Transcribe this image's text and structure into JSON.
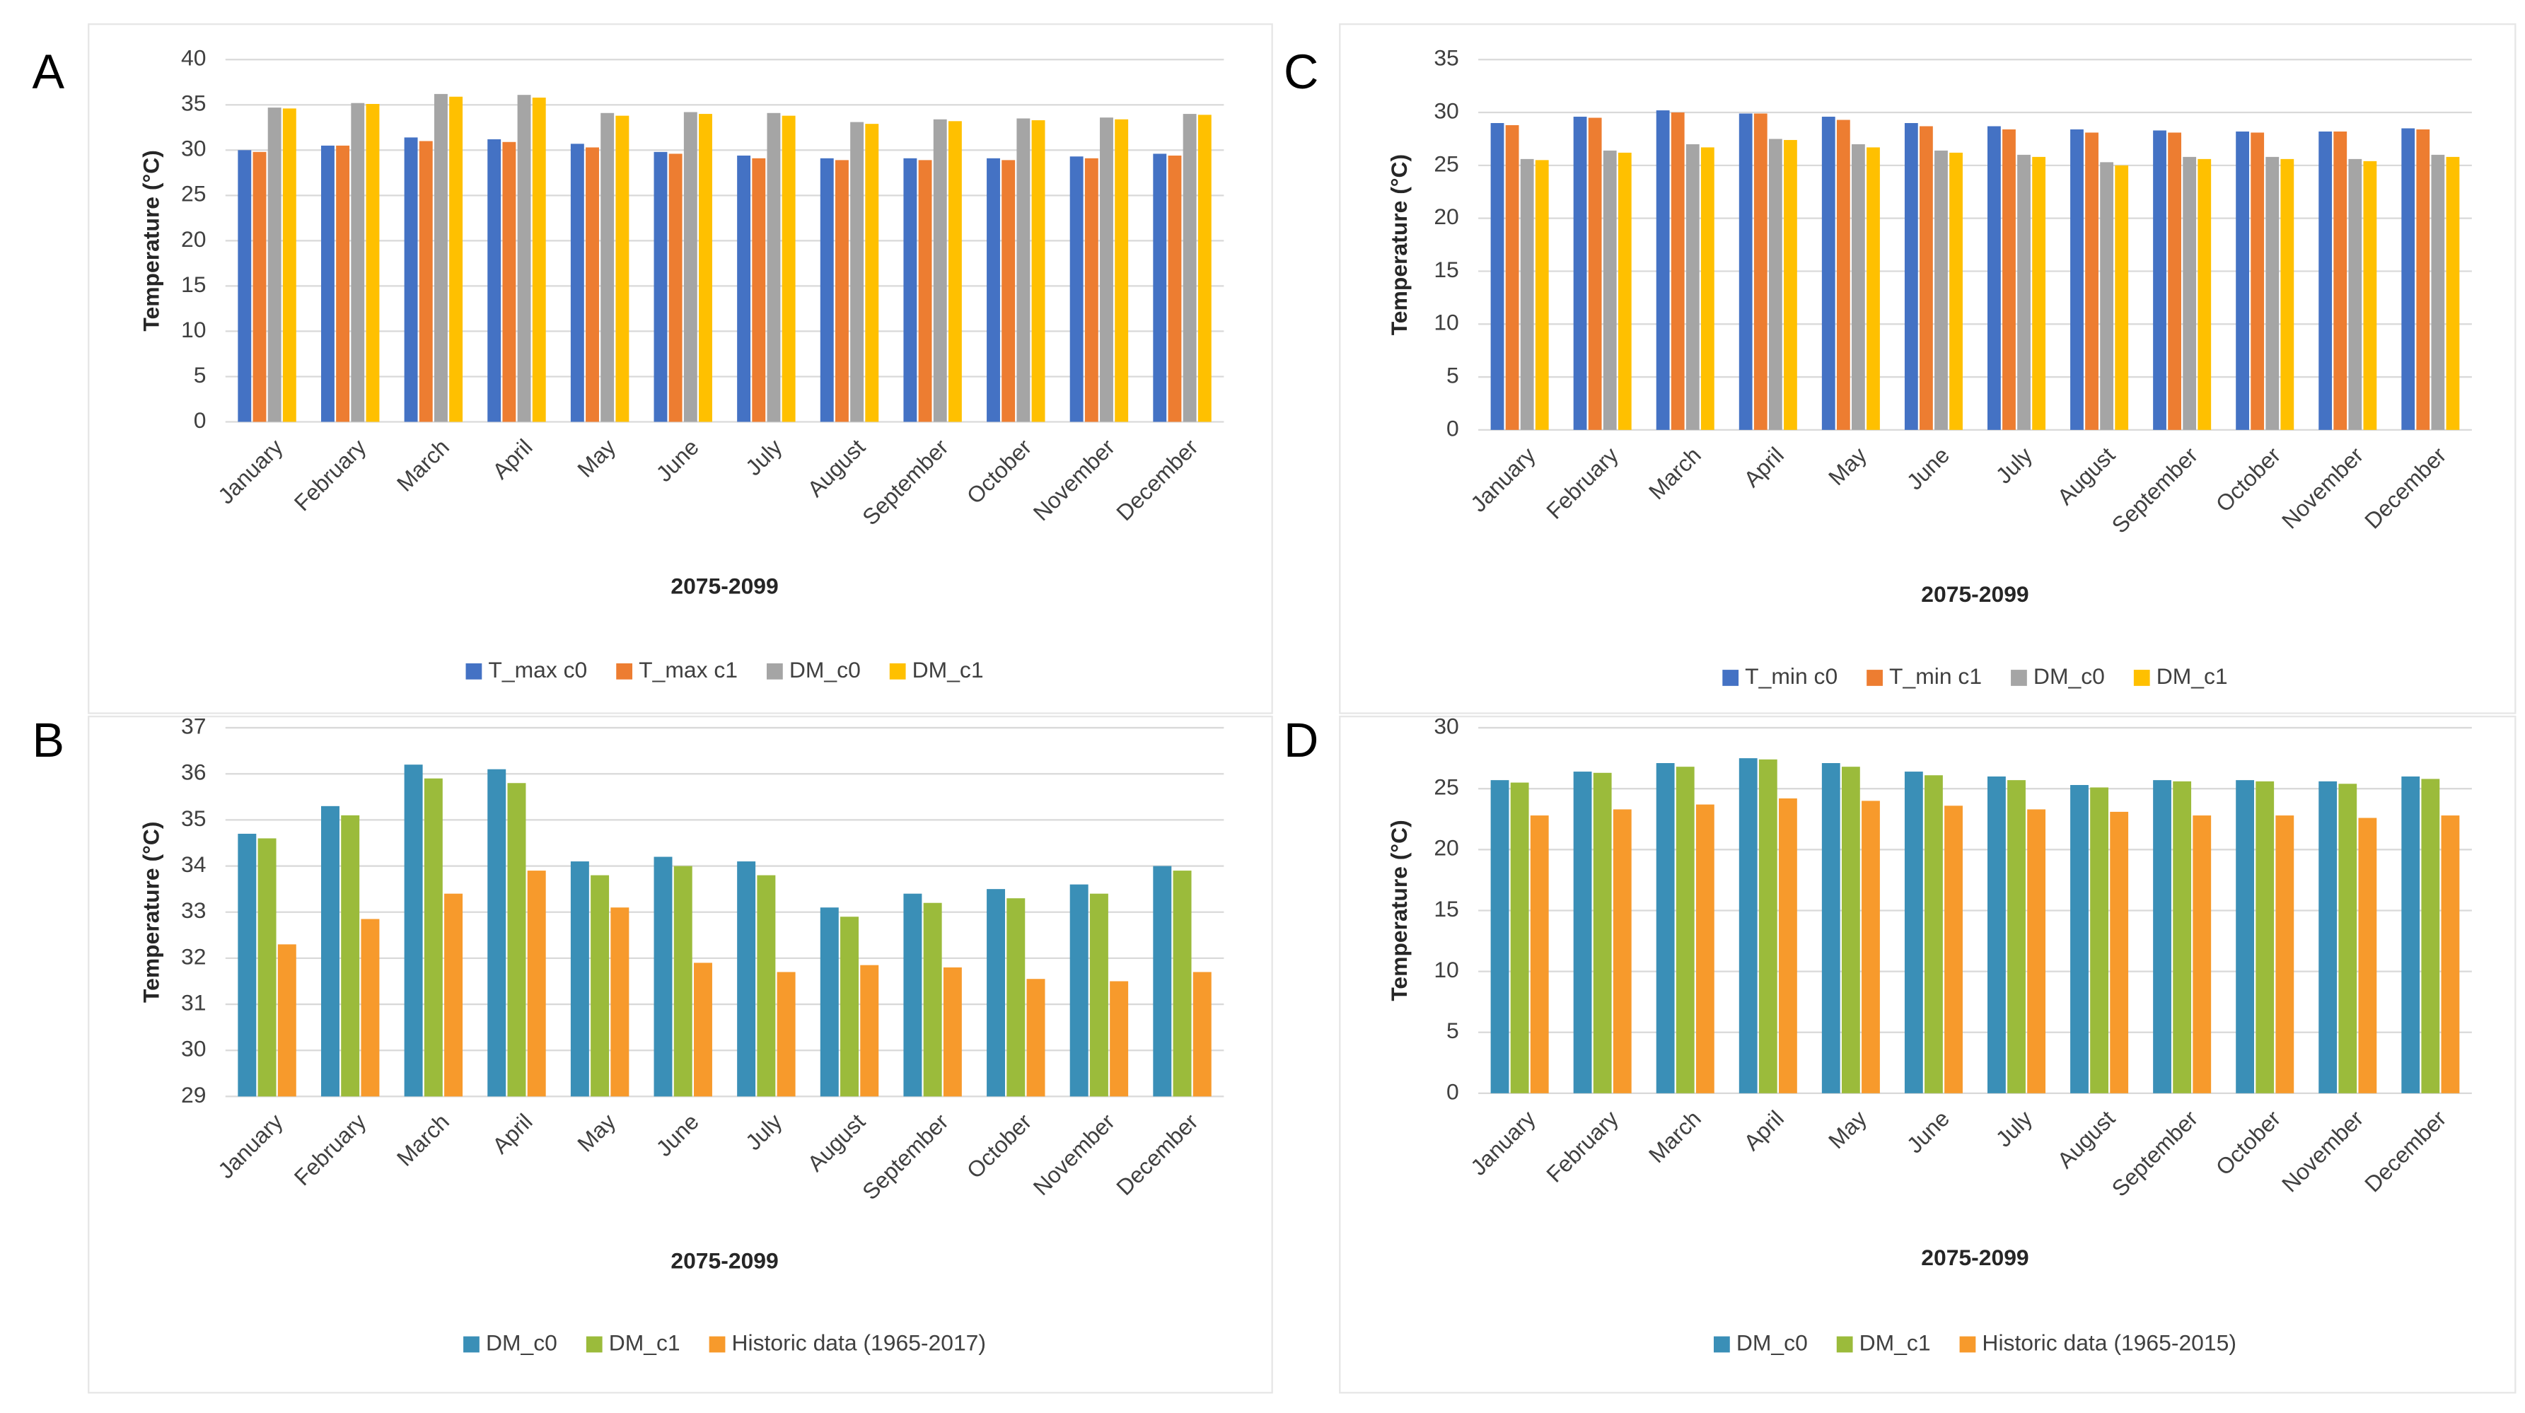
{
  "chart_data": [
    {
      "type": "bar",
      "panel": "A",
      "y_label": "Temperature (°C)",
      "x_label": "2075-2099",
      "categories": [
        "January",
        "February",
        "March",
        "April",
        "May",
        "June",
        "July",
        "August",
        "September",
        "October",
        "November",
        "December"
      ],
      "series": [
        {
          "name": "T_max c0",
          "color": "#4472c4",
          "values": [
            30,
            30.5,
            31.4,
            31.2,
            30.7,
            29.8,
            29.4,
            29.1,
            29.1,
            29.1,
            29.3,
            29.6
          ]
        },
        {
          "name": "T_max c1",
          "color": "#ed7d31",
          "values": [
            29.8,
            30.5,
            31,
            30.9,
            30.3,
            29.6,
            29.1,
            28.9,
            28.9,
            28.9,
            29.1,
            29.4
          ]
        },
        {
          "name": "DM_c0",
          "color": "#a5a5a5",
          "values": [
            34.7,
            35.2,
            36.2,
            36.1,
            34.1,
            34.2,
            34.1,
            33.1,
            33.4,
            33.5,
            33.6,
            34.0
          ]
        },
        {
          "name": "DM_c1",
          "color": "#ffc000",
          "values": [
            34.6,
            35.1,
            35.9,
            35.8,
            33.8,
            34.0,
            33.8,
            32.9,
            33.2,
            33.3,
            33.4,
            33.9
          ]
        }
      ],
      "ylim": [
        0,
        40
      ],
      "yticks": [
        0,
        5,
        10,
        15,
        20,
        25,
        30,
        35,
        40
      ],
      "grid": true
    },
    {
      "type": "bar",
      "panel": "B",
      "y_label": "Temperature (°C)",
      "x_label": "2075-2099",
      "categories": [
        "January",
        "February",
        "March",
        "April",
        "May",
        "June",
        "July",
        "August",
        "September",
        "October",
        "November",
        "December"
      ],
      "series": [
        {
          "name": "DM_c0",
          "color": "#3a8fb7",
          "values": [
            34.7,
            35.3,
            36.2,
            36.1,
            34.1,
            34.2,
            34.1,
            33.1,
            33.4,
            33.5,
            33.6,
            34.0
          ]
        },
        {
          "name": "DM_c1",
          "color": "#9bbb3b",
          "values": [
            34.6,
            35.1,
            35.9,
            35.8,
            33.8,
            34.0,
            33.8,
            32.9,
            33.2,
            33.3,
            33.4,
            33.9
          ]
        },
        {
          "name": "Historic data (1965-2017)",
          "color": "#f79a2c",
          "values": [
            32.3,
            32.85,
            33.4,
            33.9,
            33.1,
            31.9,
            31.7,
            31.85,
            31.8,
            31.55,
            31.5,
            31.7
          ]
        }
      ],
      "ylim": [
        29,
        37
      ],
      "yticks": [
        29,
        30,
        31,
        32,
        33,
        34,
        35,
        36,
        37
      ],
      "grid": true
    },
    {
      "type": "bar",
      "panel": "C",
      "y_label": "Temperature (°C)",
      "x_label": "2075-2099",
      "categories": [
        "January",
        "February",
        "March",
        "April",
        "May",
        "June",
        "July",
        "August",
        "September",
        "October",
        "November",
        "December"
      ],
      "series": [
        {
          "name": "T_min c0",
          "color": "#4472c4",
          "values": [
            29,
            29.6,
            30.2,
            29.9,
            29.6,
            29,
            28.7,
            28.4,
            28.3,
            28.2,
            28.2,
            28.5
          ]
        },
        {
          "name": "T_min c1",
          "color": "#ed7d31",
          "values": [
            28.8,
            29.5,
            30,
            29.9,
            29.3,
            28.7,
            28.4,
            28.1,
            28.1,
            28.1,
            28.2,
            28.4
          ]
        },
        {
          "name": "DM_c0",
          "color": "#a5a5a5",
          "values": [
            25.6,
            26.4,
            27,
            27.5,
            27,
            26.4,
            26,
            25.3,
            25.8,
            25.8,
            25.6,
            26
          ]
        },
        {
          "name": "DM_c1",
          "color": "#ffc000",
          "values": [
            25.5,
            26.2,
            26.7,
            27.4,
            26.7,
            26.2,
            25.8,
            25,
            25.6,
            25.6,
            25.4,
            25.8
          ]
        }
      ],
      "ylim": [
        0,
        35
      ],
      "yticks": [
        0,
        5,
        10,
        15,
        20,
        25,
        30,
        35
      ],
      "grid": true
    },
    {
      "type": "bar",
      "panel": "D",
      "y_label": "Temperature (°C)",
      "x_label": "2075-2099",
      "categories": [
        "January",
        "February",
        "March",
        "April",
        "May",
        "June",
        "July",
        "August",
        "September",
        "October",
        "November",
        "December"
      ],
      "series": [
        {
          "name": "DM_c0",
          "color": "#3a8fb7",
          "values": [
            25.7,
            26.4,
            27.1,
            27.5,
            27.1,
            26.4,
            26,
            25.3,
            25.7,
            25.7,
            25.6,
            26
          ]
        },
        {
          "name": "DM_c1",
          "color": "#9bbb3b",
          "values": [
            25.5,
            26.3,
            26.8,
            27.4,
            26.8,
            26.1,
            25.7,
            25.1,
            25.6,
            25.6,
            25.4,
            25.8
          ]
        },
        {
          "name": "Historic data  (1965-2015)",
          "color": "#f79a2c",
          "values": [
            22.8,
            23.3,
            23.7,
            24.2,
            24,
            23.6,
            23.3,
            23.1,
            22.8,
            22.8,
            22.6,
            22.8
          ]
        }
      ],
      "ylim": [
        0,
        30
      ],
      "yticks": [
        0,
        5,
        10,
        15,
        20,
        25,
        30
      ],
      "grid": true
    }
  ]
}
